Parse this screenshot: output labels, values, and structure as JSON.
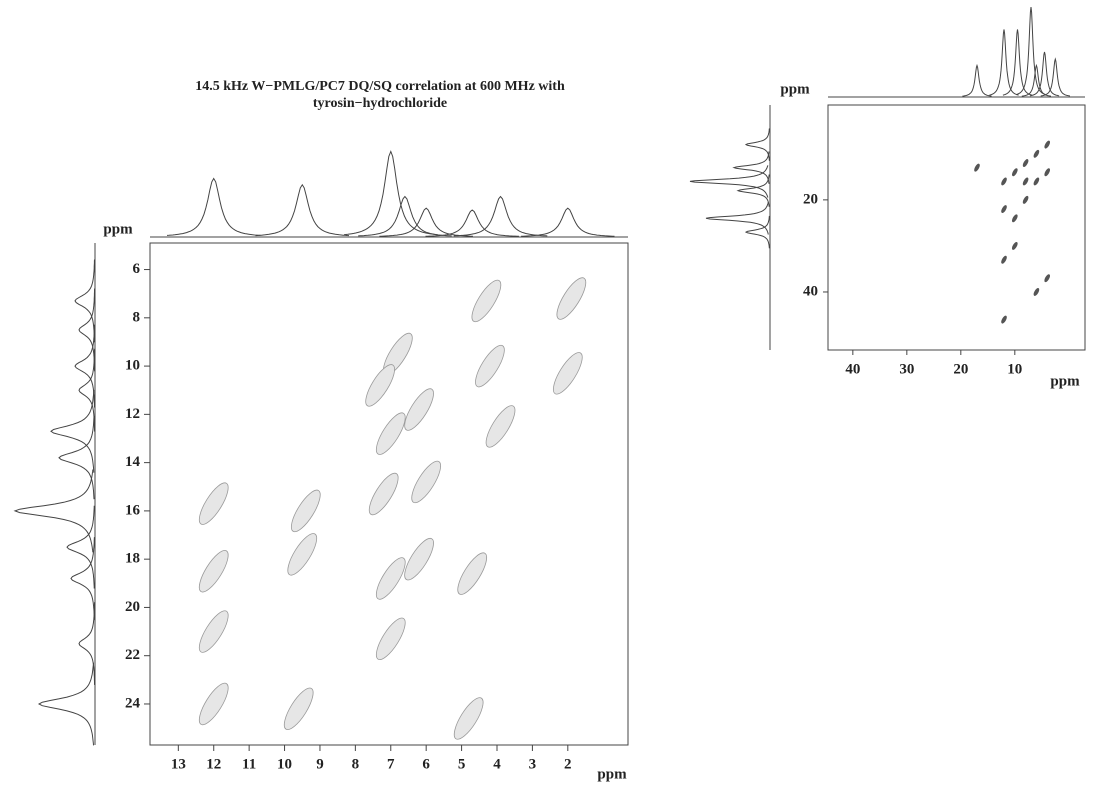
{
  "chart_data": [
    {
      "type": "contour",
      "title": [
        "14.5 kHz W−PMLG/PC7 DQ/SQ correlation at 600 MHz with",
        "tyrosin−hydrochloride"
      ],
      "xlabel": "ppm",
      "ylabel": "ppm",
      "xlim": [
        13.8,
        0.3
      ],
      "ylim": [
        4.9,
        25.7
      ],
      "xticks": [
        13,
        12,
        11,
        10,
        9,
        8,
        7,
        6,
        5,
        4,
        3,
        2
      ],
      "yticks": [
        6,
        8,
        10,
        12,
        14,
        16,
        18,
        20,
        22,
        24
      ],
      "peaks": {
        "x": [
          4.3,
          1.9,
          4.2,
          3.9,
          6.8,
          7.3,
          6.2,
          7.0,
          7.2,
          6.0,
          6.2,
          7.0,
          4.7,
          7.0,
          2.0,
          12.0,
          9.4,
          9.5,
          12.0,
          12.0,
          12.0,
          9.6,
          4.8
        ],
        "y": [
          7.3,
          7.2,
          10.0,
          12.5,
          9.5,
          10.8,
          11.8,
          12.8,
          15.3,
          14.8,
          18.0,
          18.8,
          18.6,
          21.3,
          10.3,
          15.7,
          16.0,
          17.8,
          18.5,
          21.0,
          24.0,
          24.2,
          24.6
        ]
      },
      "top_projection": {
        "x": [
          12.0,
          9.5,
          7.0,
          6.6,
          6.0,
          4.7,
          3.9,
          2.0
        ],
        "values": [
          0.65,
          0.58,
          0.95,
          0.45,
          0.32,
          0.3,
          0.45,
          0.32
        ]
      },
      "left_projection": {
        "y": [
          7.3,
          8.5,
          10.0,
          11.0,
          12.7,
          13.8,
          16.0,
          17.5,
          18.8,
          21.5,
          24.0
        ],
        "values": [
          0.25,
          0.2,
          0.25,
          0.2,
          0.55,
          0.45,
          1.0,
          0.35,
          0.3,
          0.2,
          0.7
        ]
      }
    },
    {
      "type": "contour",
      "xlabel": "ppm",
      "ylabel": "ppm",
      "xlim": [
        44.6,
        -3
      ],
      "ylim": [
        -0.6,
        52.6
      ],
      "xticks": [
        40,
        30,
        20,
        10
      ],
      "yticks": [
        20,
        40
      ],
      "peaks": {
        "x": [
          4,
          6,
          8,
          10,
          12,
          12,
          10,
          8,
          4,
          6,
          12,
          17,
          10,
          12,
          4,
          6,
          8
        ],
        "y": [
          8,
          10,
          12,
          14,
          16,
          22,
          24,
          20,
          37,
          40,
          46,
          13,
          30,
          33,
          14,
          16,
          16
        ]
      },
      "top_projection": {
        "x": [
          17,
          12,
          9.5,
          7,
          6,
          4.5,
          2.5
        ],
        "values": [
          0.35,
          0.75,
          0.75,
          1.0,
          0.35,
          0.5,
          0.42
        ]
      },
      "left_projection": {
        "y": [
          8,
          13,
          16,
          18,
          24,
          27
        ],
        "values": [
          0.3,
          0.45,
          1.0,
          0.4,
          0.8,
          0.3
        ]
      }
    }
  ]
}
